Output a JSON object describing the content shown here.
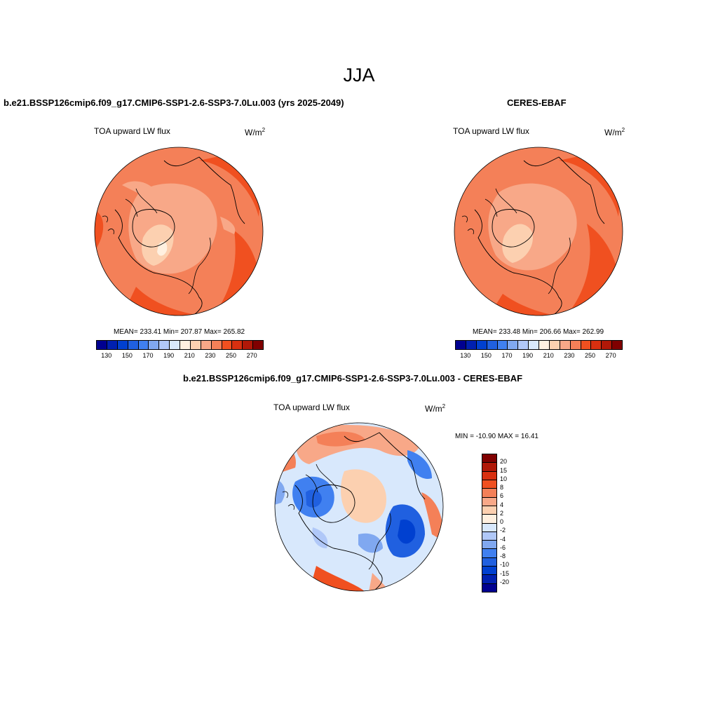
{
  "figure_title": "JJA",
  "panels": [
    {
      "title": "b.e21.BSSP126cmip6.f09_g17.CMIP6-SSP1-2.6-SSP3-7.0Lu.003 (yrs 2025-2049)",
      "variable": "TOA upward LW flux",
      "units": "W/m",
      "units_sup": "2",
      "stats": "MEAN= 233.41  Min= 207.87  Max= 265.82"
    },
    {
      "title": "CERES-EBAF",
      "variable": "TOA upward LW flux",
      "units": "W/m",
      "units_sup": "2",
      "stats": "MEAN= 233.48  Min= 206.66  Max= 262.99"
    },
    {
      "title": "b.e21.BSSP126cmip6.f09_g17.CMIP6-SSP1-2.6-SSP3-7.0Lu.003 - CERES-EBAF",
      "variable": "TOA upward LW flux",
      "units": "W/m",
      "units_sup": "2",
      "stats": "MIN = -10.90 MAX =  16.41"
    }
  ],
  "abs_colorbar": {
    "colors": [
      "#000090",
      "#0020b0",
      "#0040d0",
      "#2060e0",
      "#4080f0",
      "#80a8f0",
      "#b0c8f8",
      "#d8e8fc",
      "#fff0e0",
      "#fcd0b0",
      "#f8a888",
      "#f48058",
      "#f05020",
      "#d83010",
      "#b01808",
      "#800000"
    ],
    "tick_labels": [
      "130",
      "150",
      "170",
      "190",
      "210",
      "230",
      "250",
      "270"
    ]
  },
  "diff_colorbar": {
    "colors": [
      "#800000",
      "#b01808",
      "#d83010",
      "#f05020",
      "#f48058",
      "#f8a888",
      "#fcd0b0",
      "#fff0e0",
      "#d8e8fc",
      "#b0c8f8",
      "#80a8f0",
      "#4080f0",
      "#2060e0",
      "#0040d0",
      "#0020b0",
      "#000090"
    ],
    "tick_labels": [
      "20",
      "15",
      "10",
      "8",
      "6",
      "4",
      "2",
      "0",
      "-2",
      "-4",
      "-6",
      "-8",
      "-10",
      "-15",
      "-20"
    ]
  }
}
